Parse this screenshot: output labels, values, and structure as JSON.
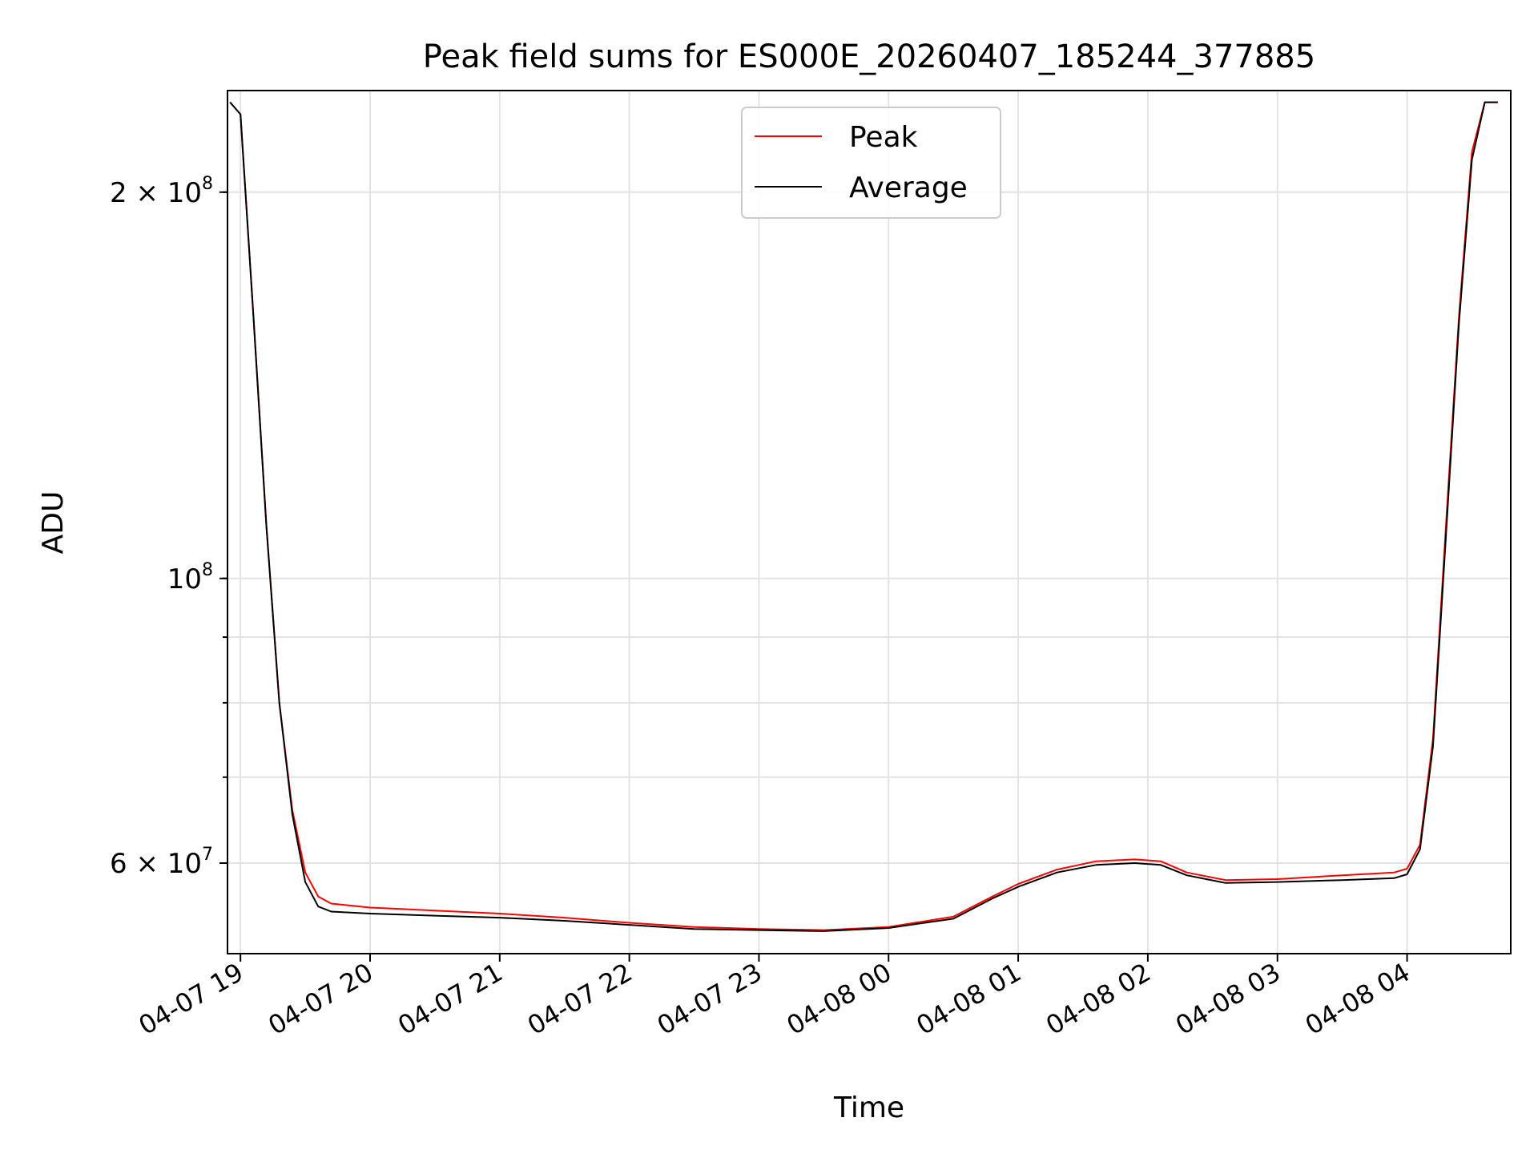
{
  "chart_data": {
    "type": "line",
    "title": "Peak field sums for ES000E_20260407_185244_377885",
    "xlabel": "Time",
    "ylabel": "ADU",
    "yscale": "log",
    "grid": true,
    "legend_position": "top-center",
    "ylim": [
      51000000,
      240000000
    ],
    "xlim_hours": [
      -0.1,
      9.8
    ],
    "x_tick_labels": [
      "04-07 19",
      "04-07 20",
      "04-07 21",
      "04-07 22",
      "04-07 23",
      "04-08 00",
      "04-08 01",
      "04-08 02",
      "04-08 03",
      "04-08 04"
    ],
    "x_tick_hours": [
      0,
      1,
      2,
      3,
      4,
      5,
      6,
      7,
      8,
      9
    ],
    "y_major_ticks": [
      {
        "value": 200000000,
        "label": "2 × 10",
        "exp": "8"
      },
      {
        "value": 100000000,
        "label": "10",
        "exp": "8"
      },
      {
        "value": 60000000,
        "label": "6 × 10",
        "exp": "7"
      }
    ],
    "y_minor_ticks": [
      60000000,
      70000000,
      80000000,
      90000000,
      100000000,
      200000000
    ],
    "series": [
      {
        "name": "Peak",
        "color": "#ff0000",
        "hours": [
          -0.08,
          0.0,
          0.1,
          0.2,
          0.3,
          0.4,
          0.5,
          0.6,
          0.7,
          1.0,
          1.5,
          2.0,
          2.5,
          3.0,
          3.5,
          4.0,
          4.5,
          5.0,
          5.5,
          5.8,
          6.0,
          6.3,
          6.6,
          6.9,
          7.1,
          7.3,
          7.6,
          8.0,
          8.5,
          8.9,
          9.0,
          9.1,
          9.2,
          9.3,
          9.4,
          9.5,
          9.6,
          9.7
        ],
        "values": [
          235000000,
          230000000,
          160000000,
          110000000,
          80000000,
          66000000,
          59000000,
          56500000,
          55800000,
          55400000,
          55100000,
          54800000,
          54400000,
          53900000,
          53500000,
          53300000,
          53200000,
          53500000,
          54500000,
          56500000,
          57800000,
          59300000,
          60200000,
          60400000,
          60200000,
          59000000,
          58200000,
          58300000,
          58700000,
          59000000,
          59400000,
          62000000,
          75000000,
          110000000,
          160000000,
          215000000,
          235000000,
          235000000
        ]
      },
      {
        "name": "Average",
        "color": "#000000",
        "hours": [
          -0.08,
          0.0,
          0.1,
          0.2,
          0.3,
          0.4,
          0.5,
          0.6,
          0.7,
          1.0,
          1.5,
          2.0,
          2.5,
          3.0,
          3.5,
          4.0,
          4.5,
          5.0,
          5.5,
          5.8,
          6.0,
          6.3,
          6.6,
          6.9,
          7.1,
          7.3,
          7.6,
          8.0,
          8.5,
          8.9,
          9.0,
          9.1,
          9.2,
          9.3,
          9.4,
          9.5,
          9.6,
          9.7
        ],
        "values": [
          235000000,
          230000000,
          160000000,
          110000000,
          80000000,
          65500000,
          58000000,
          55500000,
          55000000,
          54800000,
          54600000,
          54400000,
          54100000,
          53700000,
          53300000,
          53200000,
          53100000,
          53400000,
          54300000,
          56300000,
          57500000,
          59000000,
          59800000,
          60000000,
          59800000,
          58700000,
          57900000,
          58000000,
          58200000,
          58400000,
          58800000,
          61500000,
          74000000,
          108000000,
          158000000,
          212000000,
          235000000,
          235000000
        ]
      }
    ]
  }
}
